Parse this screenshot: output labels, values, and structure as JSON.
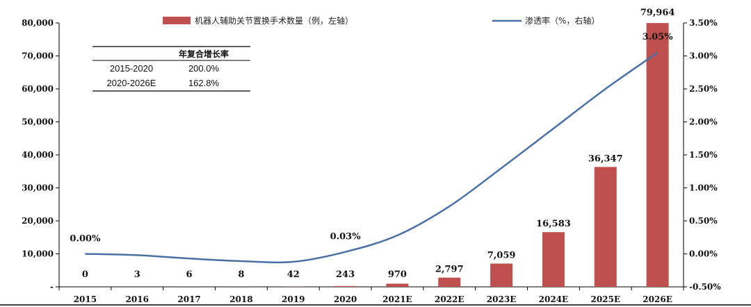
{
  "chart_data": {
    "type": "bar+line",
    "categories": [
      "2015",
      "2016",
      "2017",
      "2018",
      "2019",
      "2020",
      "2021E",
      "2022E",
      "2023E",
      "2024E",
      "2025E",
      "2026E"
    ],
    "series": [
      {
        "name": "机器人辅助关节置换手术数量（例，左轴）",
        "type": "bar",
        "axis": "left",
        "color": "#c0504d",
        "values": [
          0,
          3,
          6,
          8,
          42,
          243,
          970,
          2797,
          7059,
          16583,
          36347,
          79964
        ],
        "labels": [
          "0",
          "3",
          "6",
          "8",
          "42",
          "243",
          "970",
          "2,797",
          "7,059",
          "16,583",
          "36,347",
          "79,964"
        ]
      },
      {
        "name": "渗透率（%，右轴）",
        "type": "line",
        "axis": "right",
        "color": "#4a6fa5",
        "values": [
          0.0,
          -0.02,
          -0.07,
          -0.11,
          -0.12,
          0.03,
          0.28,
          0.72,
          1.3,
          1.9,
          2.5,
          3.05
        ]
      }
    ],
    "line_annotations": [
      {
        "index": 0,
        "text": "0.00%"
      },
      {
        "index": 5,
        "text": "0.03%"
      },
      {
        "index": 11,
        "text": "3.05%"
      }
    ],
    "y_left": {
      "min": 0,
      "max": 80000,
      "ticks": [
        0,
        10000,
        20000,
        30000,
        40000,
        50000,
        60000,
        70000,
        80000
      ],
      "tick_labels": [
        "-",
        "10,000",
        "20,000",
        "30,000",
        "40,000",
        "50,000",
        "60,000",
        "70,000",
        "80,000"
      ]
    },
    "y_right": {
      "min": -0.5,
      "max": 3.5,
      "ticks": [
        -0.5,
        0,
        0.5,
        1.0,
        1.5,
        2.0,
        2.5,
        3.0,
        3.5
      ],
      "tick_labels": [
        "-0.50%",
        "0.00%",
        "0.50%",
        "1.00%",
        "1.50%",
        "2.00%",
        "2.50%",
        "3.00%",
        "3.50%"
      ]
    },
    "grid": false,
    "legend_position": "top",
    "table": {
      "header": [
        "",
        "年复合增长率"
      ],
      "rows": [
        [
          "2015-2020",
          "200.0%"
        ],
        [
          "2020-2026E",
          "162.8%"
        ]
      ]
    }
  }
}
